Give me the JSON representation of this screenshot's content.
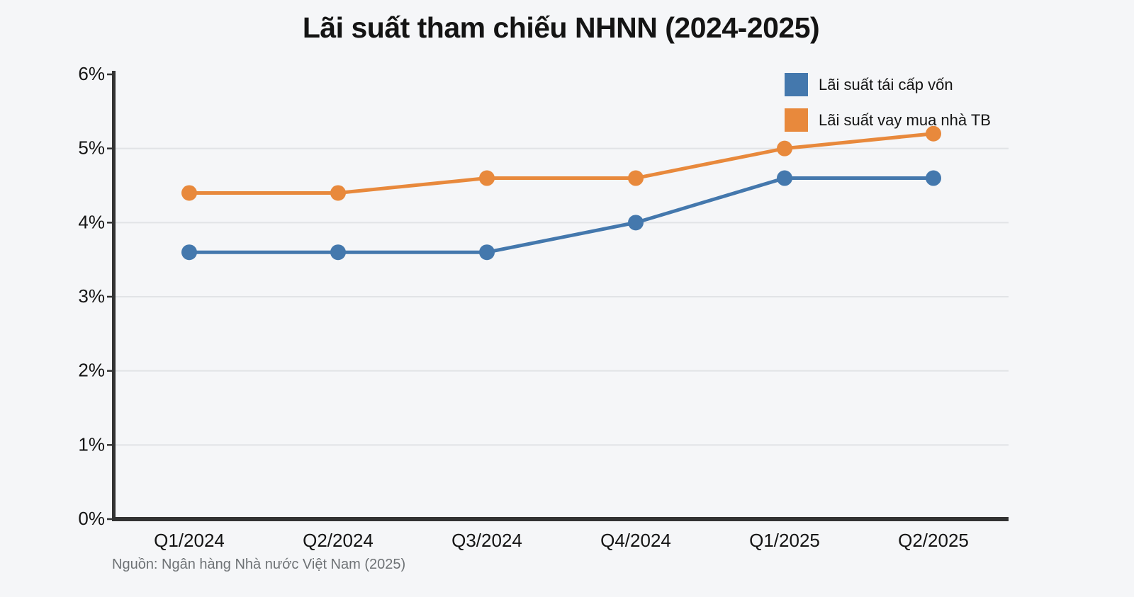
{
  "page": {
    "background_color": "#f5f6f8"
  },
  "chart_data": {
    "type": "line",
    "title": "Lãi suất tham chiếu NHNN (2024-2025)",
    "source": "Nguồn: Ngân hàng Nhà nước Việt Nam (2025)",
    "categories": [
      "Q1/2024",
      "Q2/2024",
      "Q3/2024",
      "Q4/2024",
      "Q1/2025",
      "Q2/2025"
    ],
    "series": [
      {
        "name": "Lãi suất tái cấp vốn",
        "color": "#4478ad",
        "marker": "circle",
        "values": [
          3.6,
          3.6,
          3.6,
          4.0,
          4.6,
          4.6
        ]
      },
      {
        "name": "Lãi suất vay mua nhà TB",
        "color": "#e8893c",
        "marker": "circle",
        "values": [
          4.4,
          4.4,
          4.6,
          4.6,
          5.0,
          5.2
        ]
      }
    ],
    "unit": "%",
    "ylim": [
      0,
      6
    ],
    "ytick_labels": [
      "0%",
      "1%",
      "2%",
      "3%",
      "4%",
      "5%",
      "6%"
    ],
    "xlabel": "",
    "ylabel": "",
    "grid": true,
    "legend_position": "top-right",
    "axis_color": "#333333",
    "gridline_color": "#e1e3e6"
  }
}
